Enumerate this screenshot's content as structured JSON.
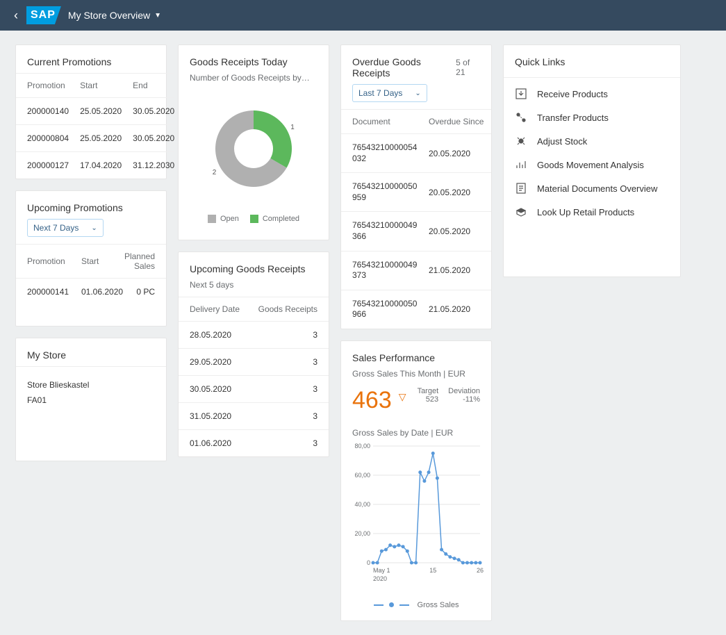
{
  "header": {
    "title": "My Store Overview",
    "logo": "SAP"
  },
  "current_promotions": {
    "title": "Current Promotions",
    "cols": [
      "Promotion",
      "Start",
      "End"
    ],
    "rows": [
      [
        "200000140",
        "25.05.2020",
        "30.05.2020"
      ],
      [
        "200000804",
        "25.05.2020",
        "30.05.2020"
      ],
      [
        "200000127",
        "17.04.2020",
        "31.12.2030"
      ]
    ]
  },
  "upcoming_promotions": {
    "title": "Upcoming Promotions",
    "select": "Next 7 Days",
    "cols": [
      "Promotion",
      "Start",
      "Planned Sales"
    ],
    "rows": [
      [
        "200000141",
        "01.06.2020",
        "0 PC"
      ]
    ]
  },
  "my_store": {
    "title": "My Store",
    "name": "Store Blieskastel",
    "code": "FA01"
  },
  "goods_today": {
    "title": "Goods Receipts Today",
    "subtitle": "Number of Goods Receipts by…",
    "donut": {
      "values": [
        1,
        2
      ],
      "labels": [
        "1",
        "2"
      ],
      "colors": [
        "#5cb85c",
        "#b0b0b0"
      ],
      "inner_color": "#ffffff",
      "legend": [
        "Open",
        "Completed"
      ]
    }
  },
  "upcoming_goods": {
    "title": "Upcoming Goods Receipts",
    "subtitle": "Next 5 days",
    "cols": [
      "Delivery Date",
      "Goods Receipts"
    ],
    "rows": [
      [
        "28.05.2020",
        "3"
      ],
      [
        "29.05.2020",
        "3"
      ],
      [
        "30.05.2020",
        "3"
      ],
      [
        "31.05.2020",
        "3"
      ],
      [
        "01.06.2020",
        "3"
      ]
    ]
  },
  "overdue": {
    "title": "Overdue Goods Receipts",
    "count": "5 of 21",
    "select": "Last 7 Days",
    "cols": [
      "Document",
      "Overdue Since"
    ],
    "rows": [
      [
        "76543210000054032",
        "20.05.2020"
      ],
      [
        "76543210000050959",
        "20.05.2020"
      ],
      [
        "76543210000049366",
        "20.05.2020"
      ],
      [
        "76543210000049373",
        "21.05.2020"
      ],
      [
        "76543210000050966",
        "21.05.2020"
      ]
    ]
  },
  "sales": {
    "title": "Sales Performance",
    "subtitle": "Gross Sales This Month | EUR",
    "kpi": "463",
    "kpi_color": "#e9730c",
    "target_label": "Target",
    "target": "523",
    "deviation_label": "Deviation",
    "deviation": "-11%",
    "chart_title": "Gross Sales by Date | EUR",
    "chart": {
      "type": "line",
      "color": "#5899da",
      "grid_color": "#e5e5e5",
      "xlim": [
        1,
        26
      ],
      "ylim": [
        0,
        80
      ],
      "ytick_step": 20,
      "y_ticks": [
        "0",
        "20,00",
        "40,00",
        "60,00",
        "80,00"
      ],
      "x_ticks": [
        {
          "x": 1,
          "label": "May 1"
        },
        {
          "x": 15,
          "label": "15"
        },
        {
          "x": 26,
          "label": "26"
        }
      ],
      "x_sub": "2020",
      "series_label": "Gross Sales",
      "points": [
        {
          "x": 1,
          "y": 0
        },
        {
          "x": 2,
          "y": 0
        },
        {
          "x": 3,
          "y": 8
        },
        {
          "x": 4,
          "y": 9
        },
        {
          "x": 5,
          "y": 12
        },
        {
          "x": 6,
          "y": 11
        },
        {
          "x": 7,
          "y": 12
        },
        {
          "x": 8,
          "y": 11
        },
        {
          "x": 9,
          "y": 8
        },
        {
          "x": 10,
          "y": 0
        },
        {
          "x": 11,
          "y": 0
        },
        {
          "x": 12,
          "y": 62
        },
        {
          "x": 13,
          "y": 56
        },
        {
          "x": 14,
          "y": 62
        },
        {
          "x": 15,
          "y": 75
        },
        {
          "x": 16,
          "y": 58
        },
        {
          "x": 17,
          "y": 9
        },
        {
          "x": 18,
          "y": 6
        },
        {
          "x": 19,
          "y": 4
        },
        {
          "x": 20,
          "y": 3
        },
        {
          "x": 21,
          "y": 2
        },
        {
          "x": 22,
          "y": 0
        },
        {
          "x": 23,
          "y": 0
        },
        {
          "x": 24,
          "y": 0
        },
        {
          "x": 25,
          "y": 0
        },
        {
          "x": 26,
          "y": 0
        }
      ]
    }
  },
  "quick_links": {
    "title": "Quick Links",
    "items": [
      {
        "icon": "receive",
        "label": "Receive Products"
      },
      {
        "icon": "transfer",
        "label": "Transfer Products"
      },
      {
        "icon": "adjust",
        "label": "Adjust Stock"
      },
      {
        "icon": "analysis",
        "label": "Goods Movement Analysis"
      },
      {
        "icon": "docs",
        "label": "Material Documents Overview"
      },
      {
        "icon": "lookup",
        "label": "Look Up Retail Products"
      }
    ]
  }
}
